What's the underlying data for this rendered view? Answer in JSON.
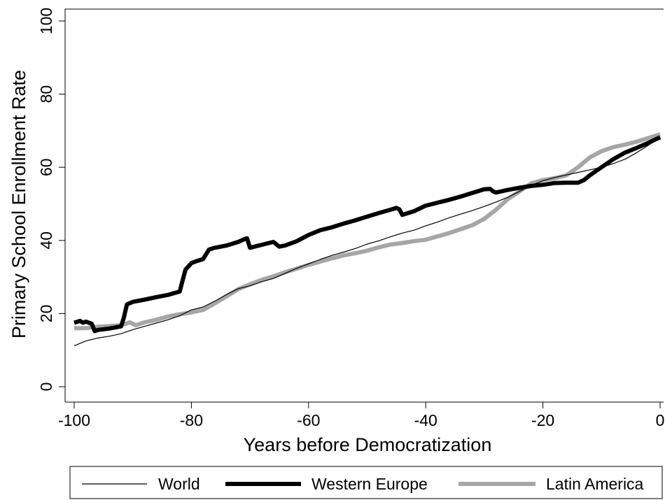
{
  "chart_data": {
    "type": "line",
    "title": "",
    "xlabel": "Years before Democratization",
    "ylabel": "Primary School Enrollment Rate",
    "xlim": [
      -101.5,
      0
    ],
    "ylim": [
      -3,
      101
    ],
    "x_ticks": [
      -100,
      -80,
      -60,
      -40,
      -20,
      0
    ],
    "x_tick_labels": [
      "-100",
      "-80",
      "-60",
      "-40",
      "-20",
      "0"
    ],
    "y_ticks": [
      0,
      20,
      40,
      60,
      80,
      100
    ],
    "y_tick_labels": [
      "0",
      "20",
      "40",
      "60",
      "80",
      "100"
    ],
    "grid": false,
    "legend_position": "bottom",
    "series": [
      {
        "name": "World",
        "color": "#000000",
        "x": [
          -100,
          -98,
          -96,
          -94,
          -92,
          -90,
          -88,
          -86,
          -84,
          -82,
          -80,
          -78,
          -76,
          -74,
          -72,
          -70,
          -68,
          -66,
          -64,
          -62,
          -60,
          -58,
          -56,
          -54,
          -52,
          -50,
          -48,
          -46,
          -44,
          -42,
          -40,
          -38,
          -36,
          -34,
          -32,
          -30,
          -28,
          -26,
          -24,
          -22,
          -20,
          -18,
          -16,
          -14,
          -12,
          -10,
          -8,
          -6,
          -4,
          -2,
          0
        ],
        "y": [
          11.2,
          12.5,
          13.3,
          13.8,
          14.5,
          15.6,
          16.5,
          17.4,
          18.3,
          19.4,
          21,
          21.8,
          23.4,
          25.2,
          26.8,
          27.6,
          28.7,
          29.6,
          31,
          32.4,
          33.6,
          34.8,
          35.9,
          36.8,
          37.8,
          39,
          39.9,
          41,
          42,
          42.8,
          44,
          45,
          46.2,
          47.2,
          48.2,
          49.3,
          50.5,
          51.8,
          53.4,
          55.1,
          56.3,
          57.2,
          57.9,
          58.6,
          59.3,
          60,
          61,
          62.2,
          64,
          66,
          68.2
        ]
      },
      {
        "name": "Western Europe",
        "color": "#000000",
        "x": [
          -100,
          -99,
          -98.5,
          -98,
          -97,
          -96.5,
          -96,
          -94,
          -92,
          -91.5,
          -91,
          -90,
          -88,
          -86,
          -84,
          -82.5,
          -82,
          -81.5,
          -81,
          -80,
          -79,
          -78,
          -77,
          -76,
          -74,
          -72,
          -71,
          -70.5,
          -70,
          -69,
          -68,
          -66,
          -65,
          -64,
          -62,
          -60,
          -58,
          -56,
          -54,
          -52,
          -50,
          -48,
          -46,
          -45,
          -44.5,
          -44,
          -42,
          -40,
          -38,
          -36,
          -34,
          -32,
          -30,
          -29,
          -28.5,
          -28,
          -26,
          -24,
          -22,
          -20,
          -18,
          -16,
          -14,
          -13,
          -12,
          -10,
          -8,
          -6,
          -4,
          -2,
          0
        ],
        "y": [
          17.5,
          18,
          17.5,
          17.8,
          17.2,
          15.2,
          15.5,
          15.9,
          16.5,
          19,
          22.5,
          23.2,
          23.8,
          24.5,
          25.1,
          25.8,
          26,
          29,
          32,
          33.8,
          34.4,
          34.9,
          37.5,
          38,
          38.6,
          39.6,
          40.3,
          40.6,
          38,
          38.4,
          38.8,
          39.6,
          38.3,
          38.6,
          39.8,
          41.5,
          42.8,
          43.6,
          44.6,
          45.5,
          46.5,
          47.5,
          48.4,
          48.9,
          48.5,
          47,
          48,
          49.5,
          50.3,
          51.1,
          52,
          53,
          54,
          54.1,
          53.4,
          53.1,
          53.8,
          54.4,
          54.9,
          55.2,
          55.7,
          55.8,
          55.8,
          56.5,
          57.8,
          60,
          62.2,
          64,
          65.3,
          66.7,
          68.2
        ]
      },
      {
        "name": "Latin America",
        "color": "#a6a6a6",
        "x": [
          -100,
          -98,
          -96,
          -94,
          -92,
          -90.5,
          -90,
          -89.5,
          -88,
          -86,
          -84,
          -82,
          -80,
          -78,
          -76,
          -74,
          -72,
          -70,
          -68,
          -66,
          -64,
          -62,
          -60,
          -58,
          -56,
          -54,
          -52,
          -50,
          -48,
          -46,
          -44,
          -42,
          -40,
          -38,
          -36,
          -34,
          -32,
          -30,
          -28,
          -26,
          -24,
          -22,
          -20,
          -18,
          -16,
          -14,
          -12,
          -10,
          -8,
          -6,
          -4,
          -2,
          0
        ],
        "y": [
          16,
          16,
          16.4,
          16.6,
          16.8,
          17.6,
          17.2,
          16.8,
          17.6,
          18.3,
          19.2,
          19.8,
          20.3,
          21,
          22.8,
          24.7,
          26.7,
          28,
          29.2,
          30.2,
          31.3,
          32.3,
          33.3,
          34.2,
          35.1,
          35.9,
          36.5,
          37.2,
          38.1,
          38.9,
          39.3,
          39.8,
          40.2,
          41.1,
          42,
          43.1,
          44.2,
          45.9,
          48.4,
          51.3,
          53.4,
          55.6,
          56.5,
          57,
          57.8,
          60,
          62.7,
          64.4,
          65.5,
          66.2,
          67,
          68,
          69
        ]
      }
    ]
  },
  "legend": {
    "items": [
      {
        "label": "World",
        "color": "#000000"
      },
      {
        "label": "Western Europe",
        "color": "#000000"
      },
      {
        "label": "Latin America",
        "color": "#a6a6a6"
      }
    ]
  }
}
